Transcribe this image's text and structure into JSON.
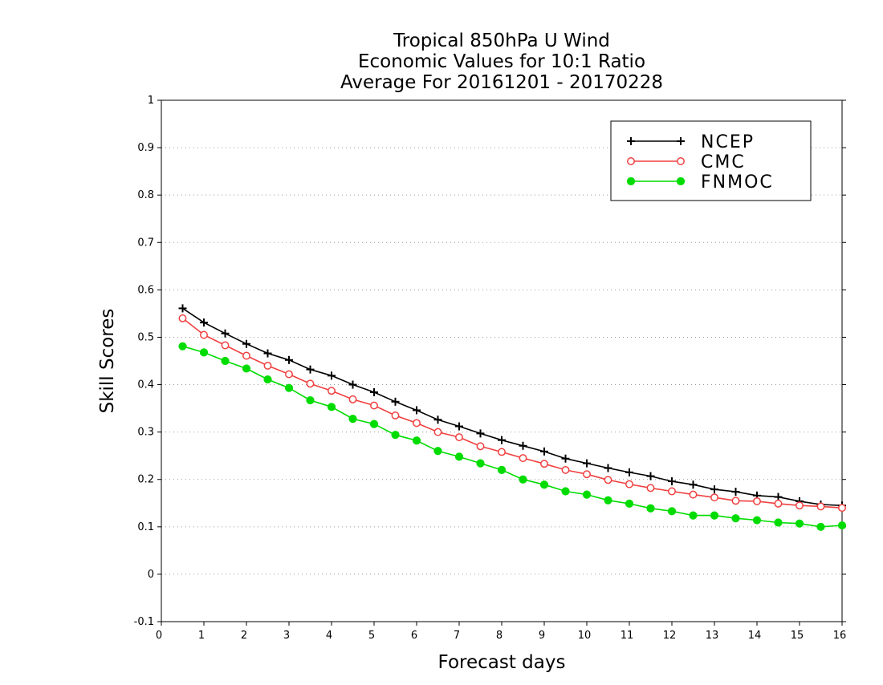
{
  "chart_data": {
    "type": "line",
    "title_lines": [
      "Tropical 850hPa U Wind",
      "Economic Values for 10:1 Ratio",
      "Average For 20161201 - 20170228"
    ],
    "xlabel": "Forecast days",
    "ylabel": "Skill Scores",
    "xlim": [
      0,
      16
    ],
    "ylim": [
      -0.1,
      1
    ],
    "x_ticks": [
      0,
      1,
      2,
      3,
      4,
      5,
      6,
      7,
      8,
      9,
      10,
      11,
      12,
      13,
      14,
      15,
      16
    ],
    "y_ticks": [
      -0.1,
      0,
      0.1,
      0.2,
      0.3,
      0.4,
      0.5,
      0.6,
      0.7,
      0.8,
      0.9,
      1
    ],
    "y_tick_labels": [
      "-0.1",
      "0",
      "0.1",
      "0.2",
      "0.3",
      "0.4",
      "0.5",
      "0.6",
      "0.7",
      "0.8",
      "0.9",
      "1"
    ],
    "grid": "horizontal dotted",
    "legend_position": "top-right",
    "x": [
      0.5,
      1.0,
      1.5,
      2.0,
      2.5,
      3.0,
      3.5,
      4.0,
      4.5,
      5.0,
      5.5,
      6.0,
      6.5,
      7.0,
      7.5,
      8.0,
      8.5,
      9.0,
      9.5,
      10.0,
      10.5,
      11.0,
      11.5,
      12.0,
      12.5,
      13.0,
      13.5,
      14.0,
      14.5,
      15.0,
      15.5,
      16.0
    ],
    "series": [
      {
        "name": "NCEP",
        "color": "#000000",
        "marker": "plus",
        "values": [
          0.561,
          0.531,
          0.508,
          0.486,
          0.466,
          0.452,
          0.432,
          0.419,
          0.4,
          0.384,
          0.364,
          0.346,
          0.326,
          0.312,
          0.297,
          0.283,
          0.271,
          0.259,
          0.244,
          0.234,
          0.224,
          0.215,
          0.207,
          0.196,
          0.189,
          0.179,
          0.174,
          0.166,
          0.163,
          0.154,
          0.147,
          0.145
        ]
      },
      {
        "name": "CMC",
        "color": "#f04040",
        "marker": "open-circle",
        "values": [
          0.54,
          0.505,
          0.483,
          0.461,
          0.44,
          0.422,
          0.402,
          0.387,
          0.369,
          0.356,
          0.335,
          0.319,
          0.3,
          0.289,
          0.27,
          0.258,
          0.245,
          0.233,
          0.22,
          0.211,
          0.199,
          0.19,
          0.182,
          0.175,
          0.168,
          0.162,
          0.155,
          0.154,
          0.149,
          0.145,
          0.143,
          0.14
        ]
      },
      {
        "name": "FNMOC",
        "color": "#00dc00",
        "marker": "filled-circle",
        "values": [
          0.481,
          0.468,
          0.45,
          0.434,
          0.411,
          0.393,
          0.367,
          0.353,
          0.328,
          0.317,
          0.294,
          0.282,
          0.26,
          0.248,
          0.234,
          0.22,
          0.2,
          0.189,
          0.175,
          0.168,
          0.156,
          0.149,
          0.139,
          0.133,
          0.124,
          0.124,
          0.118,
          0.114,
          0.109,
          0.107,
          0.1,
          0.103
        ]
      }
    ]
  }
}
